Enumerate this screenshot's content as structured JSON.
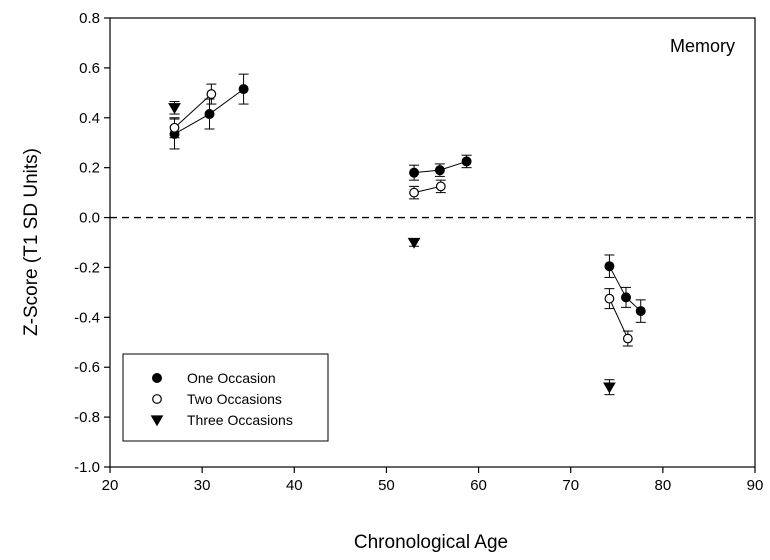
{
  "chart_data": {
    "type": "scatter",
    "title": "",
    "annotation": "Memory",
    "xlabel": "Chronological Age",
    "ylabel": "Z-Score (T1 SD Units)",
    "xlim": [
      20,
      90
    ],
    "ylim": [
      -1.0,
      0.8
    ],
    "x_ticks": [
      20,
      30,
      40,
      50,
      60,
      70,
      80,
      90
    ],
    "y_ticks": [
      -1.0,
      -0.8,
      -0.6,
      -0.4,
      -0.2,
      0.0,
      0.2,
      0.4,
      0.6,
      0.8
    ],
    "x_tick_labels": [
      "20",
      "30",
      "40",
      "50",
      "60",
      "70",
      "80",
      "90"
    ],
    "y_tick_labels": [
      "-1.0",
      "-0.8",
      "-0.6",
      "-0.4",
      "-0.2",
      "0.0",
      "0.2",
      "0.4",
      "0.6",
      "0.8"
    ],
    "reference_line": {
      "y": 0.0,
      "style": "dashed"
    },
    "grid": false,
    "legend_position": "bottom-left",
    "series": [
      {
        "name": "One Occasion",
        "marker": "filled-circle",
        "groups": [
          {
            "points": [
              {
                "x": 27.0,
                "y": 0.335,
                "err": 0.06
              },
              {
                "x": 30.8,
                "y": 0.415,
                "err": 0.06
              },
              {
                "x": 34.5,
                "y": 0.515,
                "err": 0.06
              }
            ]
          },
          {
            "points": [
              {
                "x": 53.0,
                "y": 0.18,
                "err": 0.03
              },
              {
                "x": 55.8,
                "y": 0.19,
                "err": 0.025
              },
              {
                "x": 58.7,
                "y": 0.225,
                "err": 0.025
              }
            ]
          },
          {
            "points": [
              {
                "x": 74.2,
                "y": -0.195,
                "err": 0.045
              },
              {
                "x": 76.0,
                "y": -0.32,
                "err": 0.04
              },
              {
                "x": 77.6,
                "y": -0.375,
                "err": 0.045
              }
            ]
          }
        ]
      },
      {
        "name": "Two Occasions",
        "marker": "open-circle",
        "groups": [
          {
            "points": [
              {
                "x": 27.0,
                "y": 0.36,
                "err": 0.04
              },
              {
                "x": 31.0,
                "y": 0.495,
                "err": 0.04
              }
            ]
          },
          {
            "points": [
              {
                "x": 53.0,
                "y": 0.1,
                "err": 0.025
              },
              {
                "x": 55.9,
                "y": 0.125,
                "err": 0.025
              }
            ]
          },
          {
            "points": [
              {
                "x": 74.2,
                "y": -0.325,
                "err": 0.04
              },
              {
                "x": 76.2,
                "y": -0.485,
                "err": 0.03
              }
            ]
          }
        ]
      },
      {
        "name": "Three Occasions",
        "marker": "filled-triangle-down",
        "groups": [
          {
            "points": [
              {
                "x": 27.0,
                "y": 0.44,
                "err": 0.025
              }
            ]
          },
          {
            "points": [
              {
                "x": 53.0,
                "y": -0.1,
                "err": 0.015
              }
            ]
          },
          {
            "points": [
              {
                "x": 74.2,
                "y": -0.68,
                "err": 0.03
              }
            ]
          }
        ]
      }
    ]
  }
}
